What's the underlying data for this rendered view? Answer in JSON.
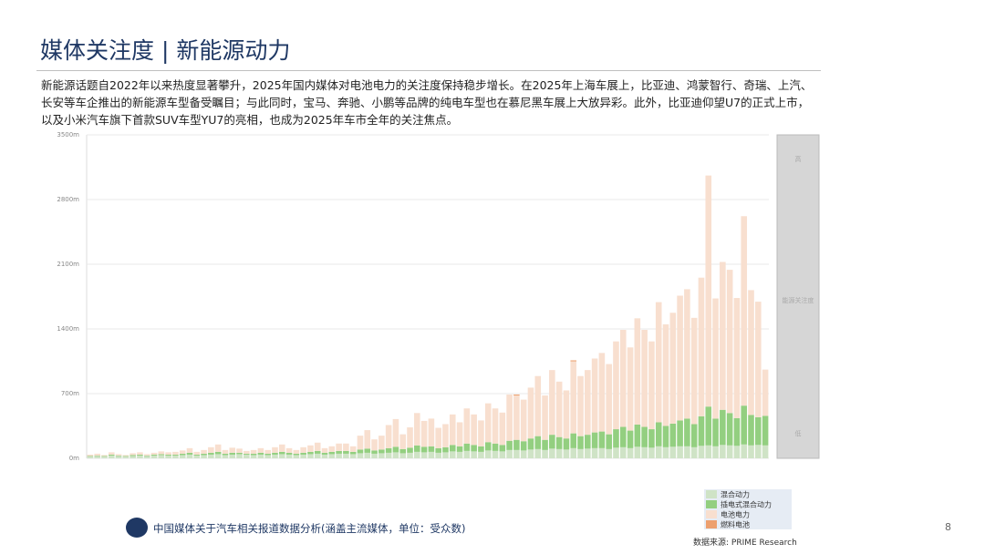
{
  "header": {
    "title": "媒体关注度 | 新能源动力",
    "text": "新能源话题自2022年以来热度显著攀升，2025年国内媒体对电池电力的关注度保持稳步增长。在2025年上海车展上，比亚迪、鸿蒙智行、奇瑞、上汽、长安等车企推出的新能源车型备受瞩目；与此同时，宝马、奔驰、小鹏等品牌的纯电车型也在慕尼黑车展上大放异彩。此外，比亚迪仰望U7的正式上市，以及小米汽车旗下首款SUV车型YU7的亮相，也成为2025年车市全年的关注焦点。"
  },
  "chart_data": {
    "type": "stacked_bar",
    "ylim": [
      0,
      3500
    ],
    "yticks": [
      {
        "value": 0,
        "label": "0m"
      },
      {
        "value": 700,
        "label": "700m"
      },
      {
        "value": 1400,
        "label": "1400m"
      },
      {
        "value": 2100,
        "label": "2100m"
      },
      {
        "value": 2800,
        "label": "2800m"
      },
      {
        "value": 3500,
        "label": "3500m"
      }
    ],
    "grid": true,
    "scale_labels": {
      "high": "高",
      "middle": "能源关注度",
      "low": "低"
    },
    "series": [
      {
        "name": "混合动力",
        "color": "#cfe3c6",
        "values": [
          20,
          25,
          20,
          30,
          25,
          20,
          25,
          30,
          25,
          30,
          35,
          30,
          30,
          35,
          40,
          30,
          35,
          40,
          45,
          35,
          40,
          45,
          40,
          35,
          40,
          35,
          40,
          45,
          40,
          35,
          40,
          45,
          50,
          40,
          45,
          50,
          50,
          45,
          55,
          60,
          50,
          55,
          60,
          65,
          55,
          60,
          70,
          65,
          70,
          60,
          65,
          75,
          70,
          80,
          75,
          70,
          85,
          80,
          75,
          90,
          90,
          85,
          95,
          100,
          90,
          105,
          100,
          95,
          110,
          100,
          105,
          110,
          110,
          100,
          115,
          120,
          110,
          125,
          120,
          115,
          130,
          120,
          125,
          130,
          130,
          120,
          135,
          140,
          130,
          145,
          140,
          135,
          150,
          140,
          145,
          140
        ]
      },
      {
        "name": "插电式混合动力",
        "color": "#93cf80",
        "values": [
          5,
          5,
          5,
          10,
          5,
          5,
          10,
          10,
          5,
          10,
          10,
          10,
          10,
          15,
          20,
          10,
          15,
          20,
          25,
          15,
          20,
          15,
          10,
          15,
          20,
          15,
          20,
          25,
          20,
          15,
          20,
          25,
          30,
          20,
          25,
          30,
          30,
          25,
          40,
          45,
          35,
          40,
          50,
          60,
          45,
          55,
          70,
          60,
          60,
          50,
          55,
          70,
          60,
          80,
          70,
          60,
          90,
          80,
          70,
          100,
          110,
          100,
          120,
          140,
          110,
          150,
          130,
          120,
          160,
          140,
          150,
          170,
          180,
          160,
          200,
          220,
          190,
          240,
          220,
          200,
          260,
          230,
          250,
          280,
          300,
          250,
          320,
          420,
          300,
          380,
          350,
          300,
          420,
          330,
          300,
          320
        ]
      },
      {
        "name": "电池电力",
        "color": "#f8dfcf",
        "values": [
          15,
          20,
          10,
          25,
          15,
          10,
          20,
          25,
          15,
          20,
          30,
          25,
          30,
          35,
          50,
          30,
          40,
          60,
          80,
          40,
          55,
          45,
          30,
          40,
          50,
          40,
          60,
          80,
          50,
          40,
          60,
          70,
          90,
          50,
          60,
          80,
          80,
          60,
          150,
          200,
          120,
          150,
          250,
          300,
          160,
          220,
          350,
          280,
          300,
          220,
          250,
          330,
          260,
          380,
          330,
          280,
          420,
          380,
          350,
          500,
          480,
          450,
          550,
          650,
          480,
          700,
          600,
          520,
          780,
          650,
          700,
          800,
          850,
          760,
          950,
          1050,
          900,
          1150,
          1050,
          950,
          1300,
          1100,
          1200,
          1350,
          1400,
          1150,
          1500,
          2500,
          1300,
          1600,
          1550,
          1300,
          2050,
          1350,
          1250,
          500
        ]
      },
      {
        "name": "燃料电池",
        "color": "#eda06e",
        "values": [
          0,
          0,
          0,
          0,
          0,
          0,
          0,
          0,
          0,
          0,
          0,
          0,
          0,
          0,
          0,
          0,
          0,
          0,
          0,
          0,
          0,
          0,
          0,
          0,
          0,
          0,
          0,
          0,
          0,
          0,
          0,
          0,
          0,
          0,
          0,
          0,
          0,
          0,
          0,
          0,
          0,
          0,
          0,
          0,
          0,
          0,
          0,
          0,
          0,
          0,
          0,
          0,
          0,
          0,
          0,
          0,
          0,
          0,
          0,
          0,
          10,
          0,
          0,
          0,
          0,
          0,
          0,
          0,
          10,
          0,
          0,
          0,
          0,
          0,
          0,
          0,
          0,
          0,
          0,
          0,
          0,
          0,
          0,
          0,
          0,
          0,
          0,
          0,
          0,
          0,
          0,
          0,
          0,
          0,
          0,
          0
        ]
      }
    ]
  },
  "footer": {
    "text": "中国媒体关于汽车相关报道数据分析(涵盖主流媒体，单位：受众数)",
    "page": "8",
    "source": "数据来源: PRIME Research"
  }
}
